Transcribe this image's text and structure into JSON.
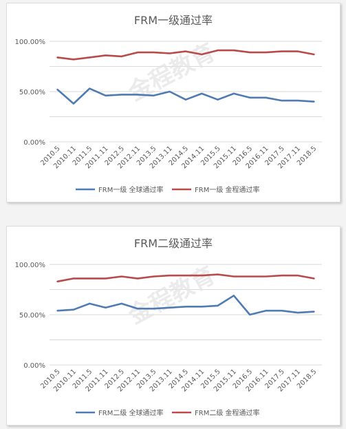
{
  "chart_data": [
    {
      "type": "line",
      "title": "FRM一级通过率",
      "categories": [
        "2010.5",
        "2010.11",
        "2011.5",
        "2011.11",
        "2012.5",
        "2012.11",
        "2013.5",
        "2013.11",
        "2014.5",
        "2014.11",
        "2015.5",
        "2015.11",
        "2016.5",
        "2016.11",
        "2017.5",
        "2017.11",
        "2018.5"
      ],
      "ylim": [
        0,
        100
      ],
      "yticks": [
        "0.00%",
        "50.00%",
        "100.00%"
      ],
      "grid": true,
      "legend": "bottom",
      "series": [
        {
          "name": "FRM一级 全球通过率",
          "color": "#4f7bb3",
          "values": [
            52,
            38,
            53,
            46,
            47,
            47,
            46,
            50,
            42,
            48,
            42,
            48,
            44,
            44,
            41,
            41,
            40
          ]
        },
        {
          "name": "FRM一级 金程通过率",
          "color": "#b84a4a",
          "values": [
            84,
            82,
            84,
            86,
            85,
            89,
            89,
            88,
            90,
            87,
            91,
            91,
            89,
            89,
            90,
            90,
            87
          ]
        }
      ]
    },
    {
      "type": "line",
      "title": "FRM二级通过率",
      "categories": [
        "2010.5",
        "2010.11",
        "2011.5",
        "2011.11",
        "2012.5",
        "2012.11",
        "2013.5",
        "2013.11",
        "2014.5",
        "2014.11",
        "2015.5",
        "2015.11",
        "2016.5",
        "2016.11",
        "2017.5",
        "2017.11",
        "2018.5"
      ],
      "ylim": [
        0,
        100
      ],
      "yticks": [
        "0.00%",
        "50.00%",
        "100.00%"
      ],
      "grid": true,
      "legend": "bottom",
      "series": [
        {
          "name": "FRM二级 全球通过率",
          "color": "#4f7bb3",
          "values": [
            54,
            55,
            61,
            57,
            61,
            56,
            56,
            57,
            58,
            58,
            59,
            69,
            50,
            54,
            54,
            52,
            53
          ]
        },
        {
          "name": "FRM二级 金程通过率",
          "color": "#b84a4a",
          "values": [
            83,
            86,
            86,
            86,
            88,
            86,
            88,
            89,
            89,
            89,
            90,
            88,
            88,
            88,
            89,
            89,
            86
          ]
        }
      ]
    }
  ],
  "watermark": "金程教育"
}
